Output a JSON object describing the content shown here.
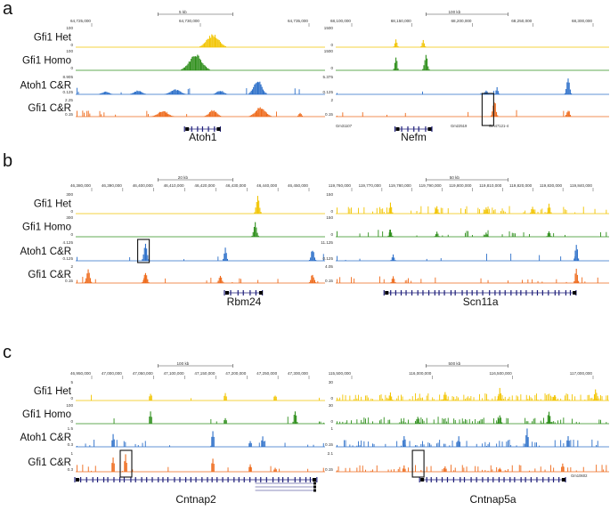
{
  "figure": {
    "colors": {
      "het": "#f2c400",
      "homo": "#2f8f1c",
      "atoh1": "#2c6fc9",
      "gfi1cr": "#ee6a1b",
      "gene": "#1f1f7a"
    },
    "panels": [
      {
        "id": "a",
        "letter": "a",
        "tracks": [
          "Gfi1 Het",
          "Gfi1 Homo",
          "Atoh1 C&R",
          "Gfi1 C&R"
        ],
        "columns": [
          {
            "id": "a-left",
            "scale": "5 kb",
            "coords": [
              "64,725,000",
              "64,730,000",
              "64,735,000"
            ],
            "scale_values": [
              [
                "100",
                "0"
              ],
              [
                "100",
                "0"
              ],
              [
                "8.905",
                "0.125"
              ],
              [
                "2.25",
                "0.15"
              ]
            ],
            "genes": [
              {
                "name": "Atoh1"
              }
            ],
            "small_labels": [],
            "highlight": false
          },
          {
            "id": "a-right",
            "scale": "100 kb",
            "coords": [
              "68,100,000",
              "68,150,000",
              "68,200,000",
              "68,250,000",
              "68,300,000"
            ],
            "scale_values": [
              [
                "1500",
                "0"
              ],
              [
                "1500",
                "0"
              ],
              [
                "5.375",
                "0.125"
              ],
              [
                "2",
                "0.15"
              ]
            ],
            "genes": [
              {
                "name": "Nefm"
              }
            ],
            "small_labels": [
              "Gm31107",
              "Gm22519",
              "Gm47121-4"
            ],
            "highlight": true
          }
        ]
      },
      {
        "id": "b",
        "letter": "b",
        "tracks": [
          "Gfi1 Het",
          "Gfi1 Homo",
          "Atoh1 C&R",
          "Gfi1 C&R"
        ],
        "columns": [
          {
            "id": "b-left",
            "scale": "20 kb",
            "coords": [
              "46,380,000",
              "46,390,000",
              "46,400,000",
              "46,410,000",
              "46,420,000",
              "46,430,000",
              "46,440,000",
              "46,450,000"
            ],
            "scale_values": [
              [
                "300",
                "0"
              ],
              [
                "300",
                "0"
              ],
              [
                "4.125",
                "0.125"
              ],
              [
                "2",
                "0.15"
              ]
            ],
            "genes": [
              {
                "name": "Rbm24"
              }
            ],
            "small_labels": [],
            "highlight": true
          },
          {
            "id": "b-right",
            "scale": "50 kb",
            "coords": [
              "119,760,000",
              "119,770,000",
              "119,780,000",
              "119,790,000",
              "119,800,000",
              "119,810,000",
              "119,820,000",
              "119,830,000",
              "119,840,000"
            ],
            "scale_values": [
              [
                "150",
                "0"
              ],
              [
                "150",
                "0"
              ],
              [
                "11.125",
                "0.125"
              ],
              [
                "4.05",
                "0.15"
              ]
            ],
            "genes": [
              {
                "name": "Scn11a"
              }
            ],
            "small_labels": [],
            "highlight": false
          }
        ]
      },
      {
        "id": "c",
        "letter": "c",
        "tracks": [
          "Gfi1 Het",
          "Gfi1 Homo",
          "Atoh1 C&R",
          "Gfi1 C&R"
        ],
        "columns": [
          {
            "id": "c-left",
            "scale": "100 kb",
            "coords": [
              "46,950,000",
              "47,000,000",
              "47,050,000",
              "47,100,000",
              "47,150,000",
              "47,200,000",
              "47,250,000",
              "47,300,000"
            ],
            "scale_values": [
              [
                "5",
                "0"
              ],
              [
                "100",
                "0"
              ],
              [
                "1.5",
                "0.3"
              ],
              [
                "1",
                "0.3"
              ]
            ],
            "genes": [
              {
                "name": "Cntnap2"
              }
            ],
            "small_labels": [],
            "highlight": true
          },
          {
            "id": "c-right",
            "scale": "500 kb",
            "coords": [
              "115,500,000",
              "116,000,000",
              "116,500,000",
              "117,000,000"
            ],
            "scale_values": [
              [
                "30",
                "0"
              ],
              [
                "30",
                "0"
              ],
              [
                "1",
                "0.15"
              ],
              [
                "2.1",
                "0.15"
              ]
            ],
            "genes": [
              {
                "name": "Cntnap5a"
              }
            ],
            "small_labels": [
              "Gm10602"
            ],
            "highlight": true
          }
        ]
      }
    ]
  }
}
